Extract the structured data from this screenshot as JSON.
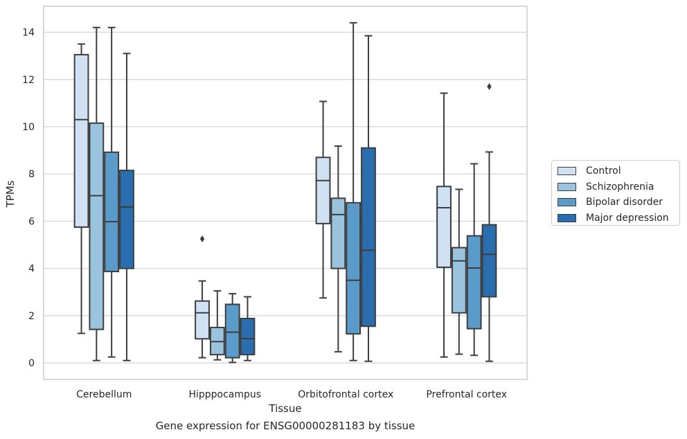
{
  "chart_data": {
    "type": "box",
    "caption": "Gene expression for ENSG00000281183 by tissue",
    "xlabel": "Tissue",
    "ylabel": "TPMs",
    "ylim": [
      -0.7,
      15.1
    ],
    "yticks": [
      0,
      2,
      4,
      6,
      8,
      10,
      12,
      14
    ],
    "grid": "horizontal",
    "legend_position": "right",
    "categories": [
      "Cerebellum",
      "Hipppocampus",
      "Orbitofrontal cortex",
      "Prefrontal cortex"
    ],
    "series": [
      {
        "name": "Control",
        "color": "#cfe1f2",
        "boxes": [
          {
            "whisker_low": 1.25,
            "q1": 5.75,
            "median": 10.3,
            "q3": 13.05,
            "whisker_high": 13.5,
            "outliers": []
          },
          {
            "whisker_low": 0.22,
            "q1": 1.02,
            "median": 2.12,
            "q3": 2.62,
            "whisker_high": 3.47,
            "outliers": [
              5.25
            ]
          },
          {
            "whisker_low": 2.75,
            "q1": 5.9,
            "median": 7.72,
            "q3": 8.7,
            "whisker_high": 11.07,
            "outliers": []
          },
          {
            "whisker_low": 0.25,
            "q1": 4.05,
            "median": 6.57,
            "q3": 7.47,
            "whisker_high": 11.42,
            "outliers": []
          }
        ]
      },
      {
        "name": "Schizophrenia",
        "color": "#9ac4de",
        "boxes": [
          {
            "whisker_low": 0.1,
            "q1": 1.42,
            "median": 7.08,
            "q3": 10.15,
            "whisker_high": 14.2,
            "outliers": []
          },
          {
            "whisker_low": 0.13,
            "q1": 0.35,
            "median": 0.9,
            "q3": 1.5,
            "whisker_high": 3.05,
            "outliers": []
          },
          {
            "whisker_low": 0.47,
            "q1": 4.0,
            "median": 6.28,
            "q3": 6.97,
            "whisker_high": 9.18,
            "outliers": []
          },
          {
            "whisker_low": 0.37,
            "q1": 2.12,
            "median": 4.32,
            "q3": 4.88,
            "whisker_high": 7.35,
            "outliers": []
          }
        ]
      },
      {
        "name": "Bipolar disorder",
        "color": "#5b9bc9",
        "boxes": [
          {
            "whisker_low": 0.25,
            "q1": 3.87,
            "median": 5.98,
            "q3": 8.92,
            "whisker_high": 14.2,
            "outliers": []
          },
          {
            "whisker_low": 0.02,
            "q1": 0.22,
            "median": 1.3,
            "q3": 2.48,
            "whisker_high": 2.93,
            "outliers": []
          },
          {
            "whisker_low": 0.1,
            "q1": 1.23,
            "median": 3.5,
            "q3": 6.78,
            "whisker_high": 14.4,
            "outliers": []
          },
          {
            "whisker_low": 0.32,
            "q1": 1.45,
            "median": 4.02,
            "q3": 5.38,
            "whisker_high": 8.43,
            "outliers": []
          }
        ]
      },
      {
        "name": "Major depression",
        "color": "#2a6eb0",
        "boxes": [
          {
            "whisker_low": 0.1,
            "q1": 4.0,
            "median": 6.6,
            "q3": 8.15,
            "whisker_high": 13.1,
            "outliers": []
          },
          {
            "whisker_low": 0.1,
            "q1": 0.35,
            "median": 1.03,
            "q3": 1.88,
            "whisker_high": 2.8,
            "outliers": []
          },
          {
            "whisker_low": 0.07,
            "q1": 1.55,
            "median": 4.77,
            "q3": 9.1,
            "whisker_high": 13.85,
            "outliers": []
          },
          {
            "whisker_low": 0.07,
            "q1": 2.8,
            "median": 4.6,
            "q3": 5.85,
            "whisker_high": 8.93,
            "outliers": [
              11.7
            ]
          }
        ]
      }
    ]
  }
}
